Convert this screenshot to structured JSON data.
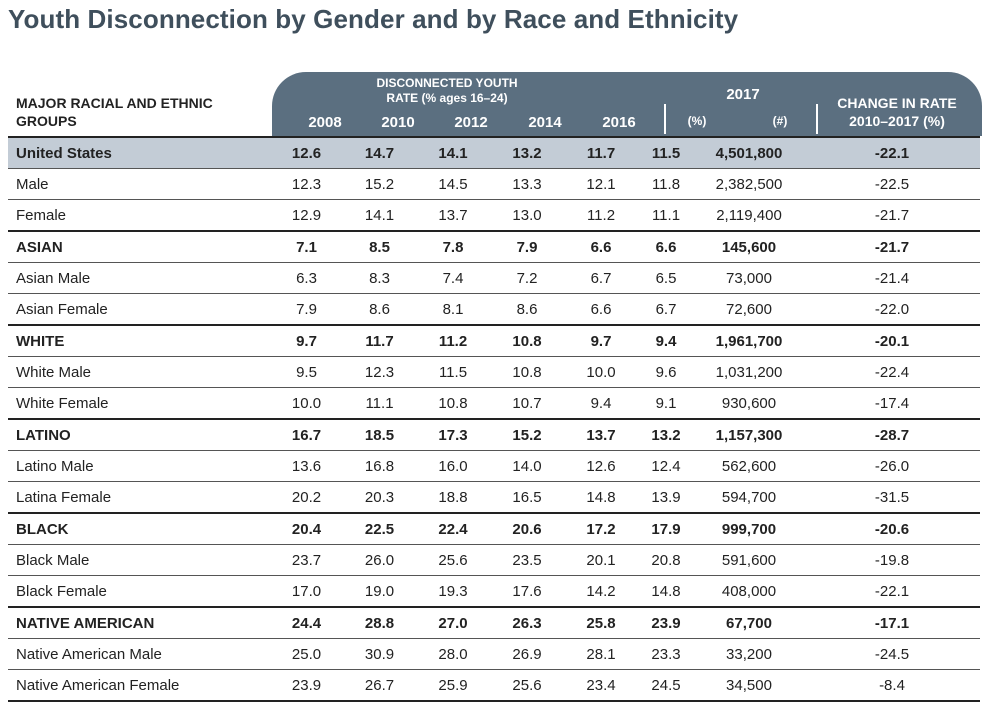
{
  "title": "Youth Disconnection by Gender and by Race and Ethnicity",
  "chart_data": {
    "type": "table",
    "row_header_label": "MAJOR RACIAL AND ETHNIC GROUPS",
    "rate_group_label": "DISCONNECTED YOUTH RATE (% ages 16–24)",
    "year_2017_label": "2017",
    "change_label": "CHANGE IN RATE 2010–2017 (%)",
    "columns": [
      "2008",
      "2010",
      "2012",
      "2014",
      "2016",
      "(%)",
      "(#)"
    ],
    "rows": [
      {
        "name": "United States",
        "group": true,
        "values": [
          "12.6",
          "14.7",
          "14.1",
          "13.2",
          "11.7",
          "11.5",
          "4,501,800",
          "-22.1"
        ]
      },
      {
        "name": "Male",
        "group": false,
        "values": [
          "12.3",
          "15.2",
          "14.5",
          "13.3",
          "12.1",
          "11.8",
          "2,382,500",
          "-22.5"
        ]
      },
      {
        "name": "Female",
        "group": false,
        "values": [
          "12.9",
          "14.1",
          "13.7",
          "13.0",
          "11.2",
          "11.1",
          "2,119,400",
          "-21.7"
        ]
      },
      {
        "name": "ASIAN",
        "group": true,
        "values": [
          "7.1",
          "8.5",
          "7.8",
          "7.9",
          "6.6",
          "6.6",
          "145,600",
          "-21.7"
        ]
      },
      {
        "name": "Asian Male",
        "group": false,
        "values": [
          "6.3",
          "8.3",
          "7.4",
          "7.2",
          "6.7",
          "6.5",
          "73,000",
          "-21.4"
        ]
      },
      {
        "name": "Asian Female",
        "group": false,
        "values": [
          "7.9",
          "8.6",
          "8.1",
          "8.6",
          "6.6",
          "6.7",
          "72,600",
          "-22.0"
        ]
      },
      {
        "name": "WHITE",
        "group": true,
        "values": [
          "9.7",
          "11.7",
          "11.2",
          "10.8",
          "9.7",
          "9.4",
          "1,961,700",
          "-20.1"
        ]
      },
      {
        "name": "White Male",
        "group": false,
        "values": [
          "9.5",
          "12.3",
          "11.5",
          "10.8",
          "10.0",
          "9.6",
          "1,031,200",
          "-22.4"
        ]
      },
      {
        "name": "White Female",
        "group": false,
        "values": [
          "10.0",
          "11.1",
          "10.8",
          "10.7",
          "9.4",
          "9.1",
          "930,600",
          "-17.4"
        ]
      },
      {
        "name": "LATINO",
        "group": true,
        "values": [
          "16.7",
          "18.5",
          "17.3",
          "15.2",
          "13.7",
          "13.2",
          "1,157,300",
          "-28.7"
        ]
      },
      {
        "name": "Latino Male",
        "group": false,
        "values": [
          "13.6",
          "16.8",
          "16.0",
          "14.0",
          "12.6",
          "12.4",
          "562,600",
          "-26.0"
        ]
      },
      {
        "name": "Latina Female",
        "group": false,
        "values": [
          "20.2",
          "20.3",
          "18.8",
          "16.5",
          "14.8",
          "13.9",
          "594,700",
          "-31.5"
        ]
      },
      {
        "name": "BLACK",
        "group": true,
        "values": [
          "20.4",
          "22.5",
          "22.4",
          "20.6",
          "17.2",
          "17.9",
          "999,700",
          "-20.6"
        ]
      },
      {
        "name": "Black Male",
        "group": false,
        "values": [
          "23.7",
          "26.0",
          "25.6",
          "23.5",
          "20.1",
          "20.8",
          "591,600",
          "-19.8"
        ]
      },
      {
        "name": "Black Female",
        "group": false,
        "values": [
          "17.0",
          "19.0",
          "19.3",
          "17.6",
          "14.2",
          "14.8",
          "408,000",
          "-22.1"
        ]
      },
      {
        "name": "NATIVE AMERICAN",
        "group": true,
        "values": [
          "24.4",
          "28.8",
          "27.0",
          "26.3",
          "25.8",
          "23.9",
          "67,700",
          "-17.1"
        ]
      },
      {
        "name": "Native American Male",
        "group": false,
        "values": [
          "25.0",
          "30.9",
          "28.0",
          "26.9",
          "28.1",
          "23.3",
          "33,200",
          "-24.5"
        ]
      },
      {
        "name": "Native American Female",
        "group": false,
        "values": [
          "23.9",
          "26.7",
          "25.9",
          "25.6",
          "23.4",
          "24.5",
          "34,500",
          "-8.4"
        ]
      }
    ]
  },
  "colors": {
    "header_band": "#5b6f80",
    "highlight_row": "#c3ccd6",
    "title": "#3f4f5c"
  }
}
